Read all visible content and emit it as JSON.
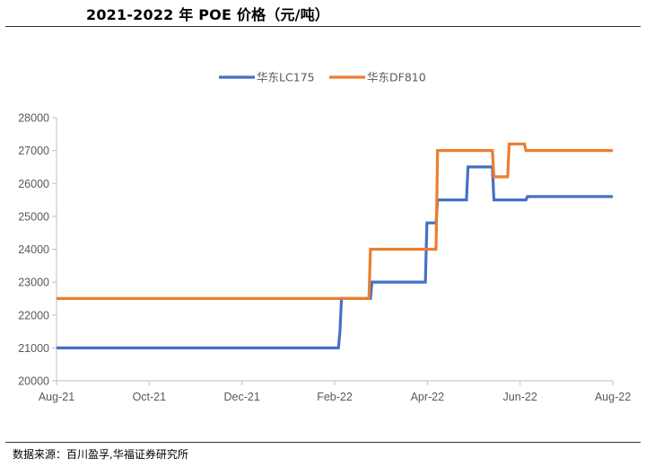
{
  "header": {
    "title": "2021-2022 年 POE 价格（元/吨）"
  },
  "footer": {
    "source": "数据来源：百川盈孚,华福证券研究所"
  },
  "chart_data": {
    "type": "line",
    "title": "2021-2022 年 POE 价格（元/吨）",
    "xlabel": "",
    "ylabel": "",
    "x_ticks": [
      "Aug-21",
      "Oct-21",
      "Dec-21",
      "Feb-22",
      "Apr-22",
      "Jun-22",
      "Aug-22"
    ],
    "y_ticks": [
      20000,
      21000,
      22000,
      23000,
      24000,
      25000,
      26000,
      27000,
      28000
    ],
    "ylim": [
      20000,
      28000
    ],
    "xlim": [
      "2021-08-01",
      "2022-08-01"
    ],
    "grid": false,
    "legend": "top-center",
    "series": [
      {
        "name": "华东LC175",
        "color": "#4472C4",
        "points": [
          [
            "2021-08-01",
            21000
          ],
          [
            "2022-02-02",
            21000
          ],
          [
            "2022-02-03",
            21500
          ],
          [
            "2022-02-04",
            22500
          ],
          [
            "2022-02-23",
            22500
          ],
          [
            "2022-02-24",
            23000
          ],
          [
            "2022-03-31",
            23000
          ],
          [
            "2022-04-01",
            24800
          ],
          [
            "2022-04-07",
            24800
          ],
          [
            "2022-04-08",
            25500
          ],
          [
            "2022-04-27",
            25500
          ],
          [
            "2022-04-28",
            26500
          ],
          [
            "2022-05-14",
            26500
          ],
          [
            "2022-05-15",
            25500
          ],
          [
            "2022-06-05",
            25500
          ],
          [
            "2022-06-06",
            25600
          ],
          [
            "2022-08-01",
            25600
          ]
        ]
      },
      {
        "name": "华东DF810",
        "color": "#ED7D31",
        "points": [
          [
            "2021-08-01",
            22500
          ],
          [
            "2022-02-22",
            22500
          ],
          [
            "2022-02-23",
            24000
          ],
          [
            "2022-04-07",
            24000
          ],
          [
            "2022-04-08",
            27000
          ],
          [
            "2022-05-14",
            27000
          ],
          [
            "2022-05-15",
            26200
          ],
          [
            "2022-05-24",
            26200
          ],
          [
            "2022-05-25",
            27200
          ],
          [
            "2022-06-04",
            27200
          ],
          [
            "2022-06-05",
            27000
          ],
          [
            "2022-08-01",
            27000
          ]
        ]
      }
    ]
  }
}
